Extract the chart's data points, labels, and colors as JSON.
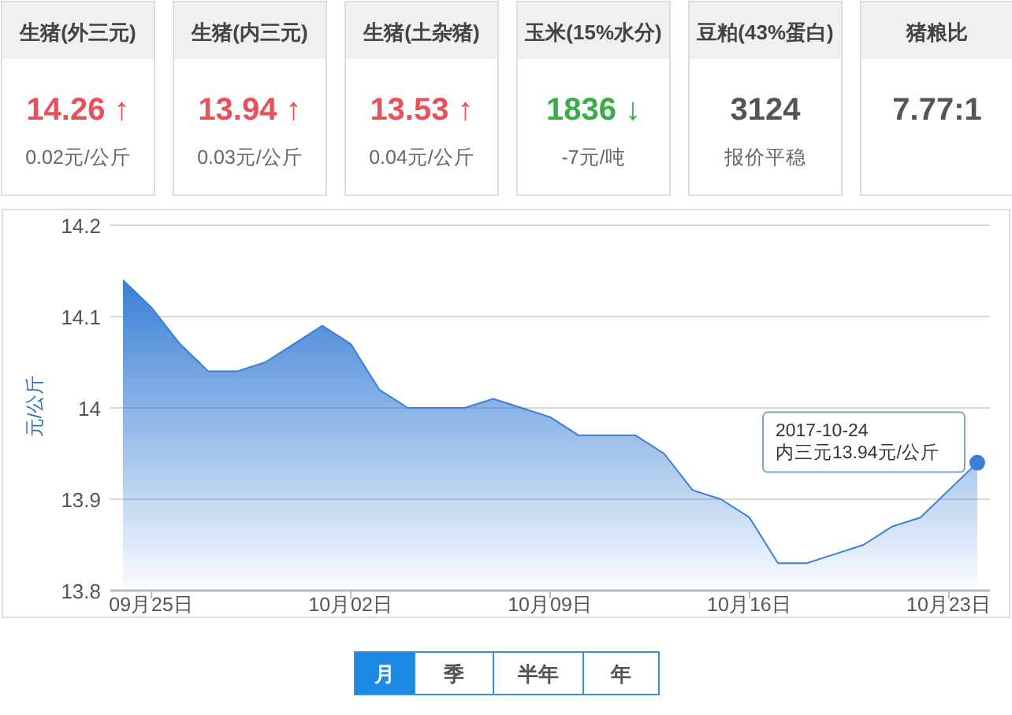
{
  "chart_data": [
    {
      "type": "other",
      "categories": [
        "生猪(外三元)",
        "生猪(内三元)",
        "生猪(土杂猪)",
        "玉米(15%水分)",
        "豆粕(43%蛋白)",
        "猪粮比"
      ],
      "value_labels": [
        "14.26 ↑",
        "13.94 ↑",
        "13.53 ↑",
        "1836 ↓",
        "3124",
        "7.77:1"
      ],
      "annotations": [
        "0.02元/公斤",
        "0.03元/公斤",
        "0.04元/公斤",
        "-7元/吨",
        "报价平稳",
        null
      ],
      "colors": [
        "#e8505b",
        "#e8505b",
        "#e8505b",
        "#3aaa4a",
        "#555555",
        "#555555"
      ]
    },
    {
      "type": "area",
      "ylabel": "元/公斤",
      "categories": [
        null,
        "09月25日",
        null,
        null,
        null,
        null,
        null,
        null,
        "10月02日",
        null,
        null,
        null,
        null,
        null,
        null,
        "10月09日",
        null,
        null,
        null,
        null,
        null,
        null,
        "10月16日",
        null,
        null,
        null,
        null,
        null,
        null,
        "10月23日",
        null
      ],
      "series": [
        {
          "color": "#3a7fd5",
          "values": [
            14.14,
            14.11,
            14.07,
            14.04,
            14.04,
            14.05,
            14.07,
            14.09,
            14.07,
            14.02,
            14.0,
            14.0,
            14.0,
            14.01,
            14.0,
            13.99,
            13.97,
            13.97,
            13.97,
            13.95,
            13.91,
            13.9,
            13.88,
            13.83,
            13.83,
            13.84,
            13.85,
            13.87,
            13.88,
            13.91,
            13.94
          ]
        }
      ],
      "ylim": [
        13.8,
        14.2
      ],
      "yticks": [
        13.8,
        13.9,
        14,
        14.1,
        14.2
      ],
      "grid": "y",
      "annotations": [
        "2017-10-24",
        "内三元13.94元/公斤"
      ]
    },
    {
      "type": "other",
      "categories": [
        "月",
        "季",
        "半年",
        "年"
      ],
      "colors": [
        "#1e88e5",
        null,
        null,
        null
      ]
    }
  ]
}
